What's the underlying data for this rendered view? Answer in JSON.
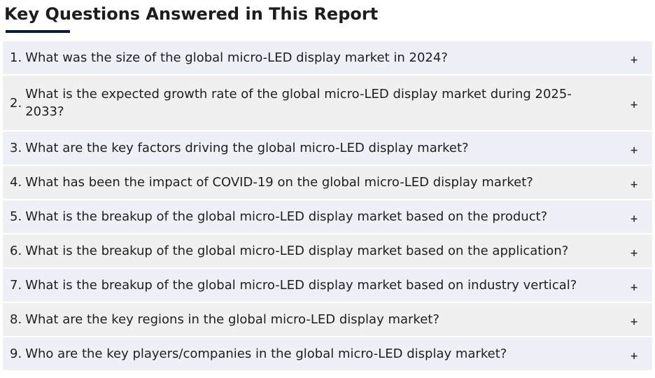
{
  "section": {
    "title": "Key Questions Answered in This Report"
  },
  "faq": {
    "toggle_icon": "plus-icon",
    "items": [
      {
        "number": "1.",
        "question": "What was the size of the global micro-LED display market in 2024?",
        "toggle": "+"
      },
      {
        "number": "2.",
        "question": "What is the expected growth rate of the global micro-LED display market during 2025-2033?",
        "toggle": "+"
      },
      {
        "number": "3.",
        "question": "What are the key factors driving the global micro-LED display market?",
        "toggle": "+"
      },
      {
        "number": "4.",
        "question": "What has been the impact of COVID-19 on the global micro-LED display market?",
        "toggle": "+"
      },
      {
        "number": "5.",
        "question": "What is the breakup of the global micro-LED display market based on the product?",
        "toggle": "+"
      },
      {
        "number": "6.",
        "question": "What is the breakup of the global micro-LED display market based on the application?",
        "toggle": "+"
      },
      {
        "number": "7.",
        "question": "What is the breakup of the global micro-LED display market based on industry vertical?",
        "toggle": "+"
      },
      {
        "number": "8.",
        "question": "What are the key regions in the global micro-LED display market?",
        "toggle": "+"
      },
      {
        "number": "9.",
        "question": "Who are the key players/companies in the global micro-LED display market?",
        "toggle": "+"
      }
    ]
  },
  "colors": {
    "row_bg_blue": "#eef0f8",
    "row_bg_grey": "#f0f0f0",
    "underline": "#0c1a33",
    "text": "#1e1e1e"
  }
}
